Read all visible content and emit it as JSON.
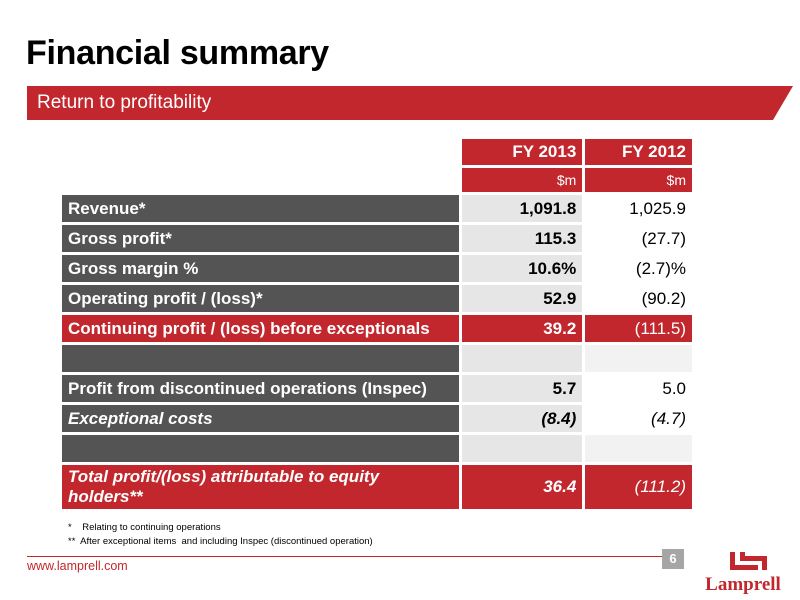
{
  "slide": {
    "title": "Financial summary",
    "subtitle": "Return to profitability"
  },
  "table": {
    "headers": [
      "FY 2013",
      "FY 2012"
    ],
    "units": [
      "$m",
      "$m"
    ],
    "rows": [
      {
        "label": "Revenue*",
        "fy2013": "1,091.8",
        "fy2012": "1,025.9"
      },
      {
        "label": "Gross profit*",
        "fy2013": "115.3",
        "fy2012": "(27.7)"
      },
      {
        "label": "Gross margin %",
        "fy2013": "10.6%",
        "fy2012": "(2.7)%"
      },
      {
        "label": "Operating profit / (loss)*",
        "fy2013": "52.9",
        "fy2012": "(90.2)"
      },
      {
        "label": "Continuing profit / (loss) before exceptionals",
        "fy2013": "39.2",
        "fy2012": "(111.5)"
      },
      {
        "label": "",
        "fy2013": "",
        "fy2012": ""
      },
      {
        "label": "Profit from discontinued operations (Inspec)",
        "fy2013": "5.7",
        "fy2012": "5.0"
      },
      {
        "label": "Exceptional costs",
        "fy2013": "(8.4)",
        "fy2012": "(4.7)"
      },
      {
        "label": "",
        "fy2013": "",
        "fy2012": ""
      },
      {
        "label": "Total profit/(loss) attributable to equity holders**",
        "fy2013": "36.4",
        "fy2012": "(111.2)"
      }
    ]
  },
  "footnotes": [
    "*    Relating to continuing operations",
    "**  After exceptional items  and including Inspec (discontinued operation)"
  ],
  "footer": {
    "url": "www.lamprell.com",
    "page_number": "6",
    "logo_text": "Lamprell"
  },
  "colors": {
    "brand_red": "#c1272d",
    "label_gray": "#545454",
    "value_gray": "#e6e6e6"
  }
}
